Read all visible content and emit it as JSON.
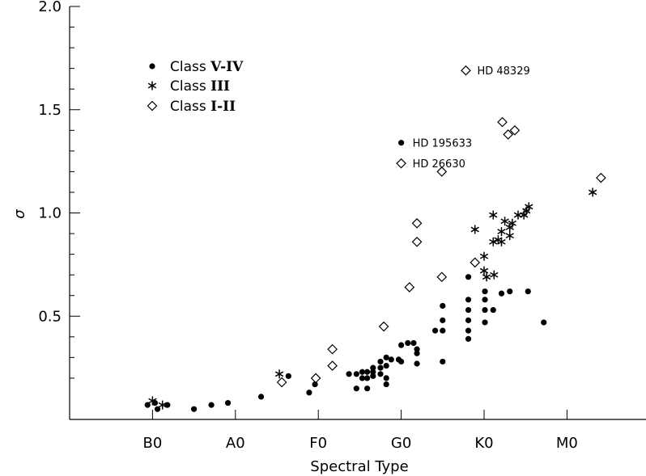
{
  "chart_data": {
    "type": "scatter",
    "title": "",
    "xlabel": "Spectral Type",
    "ylabel": "σ",
    "x_tick_positions": [
      0,
      10,
      20,
      30,
      40,
      50
    ],
    "x_tick_labels": [
      "B0",
      "A0",
      "F0",
      "G0",
      "K0",
      "M0"
    ],
    "xlim": [
      -10,
      59
    ],
    "y_major_ticks": [
      0.5,
      1.0,
      1.5,
      2.0
    ],
    "y_major_labels": [
      "0.5",
      "1.0",
      "1.5",
      "2.0"
    ],
    "y_minor_ticks": [
      0.2,
      0.3,
      0.4,
      0.6,
      0.7,
      0.8,
      0.9,
      1.1,
      1.2,
      1.3,
      1.4,
      1.6,
      1.7,
      1.8,
      1.9
    ],
    "ylim": [
      0.0,
      2.0
    ],
    "grid": false,
    "legend_position": "top-left",
    "series": [
      {
        "name": "Class V-IV",
        "legend_label_prefix": "Class",
        "legend_label_class": "V-IV",
        "marker": "filled-circle",
        "points": [
          [
            -0.6,
            0.07
          ],
          [
            0.3,
            0.08
          ],
          [
            0.6,
            0.05
          ],
          [
            1.8,
            0.07
          ],
          [
            5,
            0.05
          ],
          [
            7.1,
            0.07
          ],
          [
            9.1,
            0.08
          ],
          [
            13.1,
            0.11
          ],
          [
            16.4,
            0.21
          ],
          [
            18.9,
            0.13
          ],
          [
            19.6,
            0.17
          ],
          [
            23.7,
            0.22
          ],
          [
            24.6,
            0.22
          ],
          [
            24.6,
            0.15
          ],
          [
            25.3,
            0.2
          ],
          [
            25.3,
            0.23
          ],
          [
            25.9,
            0.23
          ],
          [
            25.9,
            0.2
          ],
          [
            25.9,
            0.15
          ],
          [
            26.6,
            0.21
          ],
          [
            26.6,
            0.23
          ],
          [
            26.6,
            0.25
          ],
          [
            27.5,
            0.28
          ],
          [
            27.5,
            0.25
          ],
          [
            27.5,
            0.22
          ],
          [
            28.2,
            0.3
          ],
          [
            28.2,
            0.26
          ],
          [
            28.2,
            0.2
          ],
          [
            28.2,
            0.17
          ],
          [
            28.8,
            0.29
          ],
          [
            29.7,
            0.29
          ],
          [
            30,
            0.36
          ],
          [
            30,
            0.28
          ],
          [
            30.8,
            0.37
          ],
          [
            31.5,
            0.37
          ],
          [
            31.9,
            0.34
          ],
          [
            31.9,
            0.32
          ],
          [
            31.9,
            0.27
          ],
          [
            34.1,
            0.43
          ],
          [
            35,
            0.55
          ],
          [
            35,
            0.48
          ],
          [
            35,
            0.43
          ],
          [
            35,
            0.28
          ],
          [
            38.1,
            0.69
          ],
          [
            38.1,
            0.58
          ],
          [
            38.1,
            0.53
          ],
          [
            38.1,
            0.48
          ],
          [
            38.1,
            0.43
          ],
          [
            38.1,
            0.39
          ],
          [
            40.1,
            0.62
          ],
          [
            40.1,
            0.58
          ],
          [
            40.1,
            0.53
          ],
          [
            40.1,
            0.47
          ],
          [
            41.1,
            0.53
          ],
          [
            42.1,
            0.61
          ],
          [
            43.1,
            0.62
          ],
          [
            45.3,
            0.62
          ],
          [
            47.2,
            0.47
          ],
          [
            30,
            1.34
          ]
        ]
      },
      {
        "name": "Class III",
        "legend_label_prefix": "Class",
        "legend_label_class": "III",
        "marker": "asterisk",
        "points": [
          [
            0,
            0.09
          ],
          [
            1.2,
            0.07
          ],
          [
            15.3,
            0.22
          ],
          [
            38.9,
            0.92
          ],
          [
            40,
            0.79
          ],
          [
            40,
            0.72
          ],
          [
            40.3,
            0.69
          ],
          [
            41.1,
            0.86
          ],
          [
            41.1,
            0.99
          ],
          [
            41.2,
            0.7
          ],
          [
            41.7,
            0.87
          ],
          [
            42.1,
            0.86
          ],
          [
            42.1,
            0.91
          ],
          [
            42.5,
            0.96
          ],
          [
            43.1,
            0.89
          ],
          [
            43.1,
            0.93
          ],
          [
            43.4,
            0.95
          ],
          [
            44.1,
            0.99
          ],
          [
            44.8,
            0.99
          ],
          [
            45.1,
            1.01
          ],
          [
            45.4,
            1.03
          ],
          [
            53.1,
            1.1
          ]
        ]
      },
      {
        "name": "Class I-II",
        "legend_label_prefix": "Class",
        "legend_label_class": "I-II",
        "marker": "open-diamond",
        "points": [
          [
            15.6,
            0.18
          ],
          [
            19.7,
            0.2
          ],
          [
            21.7,
            0.26
          ],
          [
            21.7,
            0.34
          ],
          [
            27.9,
            0.45
          ],
          [
            31,
            0.64
          ],
          [
            31.9,
            0.86
          ],
          [
            31.9,
            0.95
          ],
          [
            34.9,
            0.69
          ],
          [
            34.9,
            1.2
          ],
          [
            30,
            1.24
          ],
          [
            38.9,
            0.76
          ],
          [
            42.2,
            1.44
          ],
          [
            42.9,
            1.38
          ],
          [
            43.7,
            1.4
          ],
          [
            37.8,
            1.69
          ],
          [
            54.1,
            1.17
          ]
        ]
      }
    ],
    "annotations": [
      {
        "text": "HD 48329",
        "x": 37.8,
        "y": 1.69
      },
      {
        "text": "HD 195633",
        "x": 30,
        "y": 1.34
      },
      {
        "text": "HD 26630",
        "x": 30,
        "y": 1.24
      }
    ]
  }
}
